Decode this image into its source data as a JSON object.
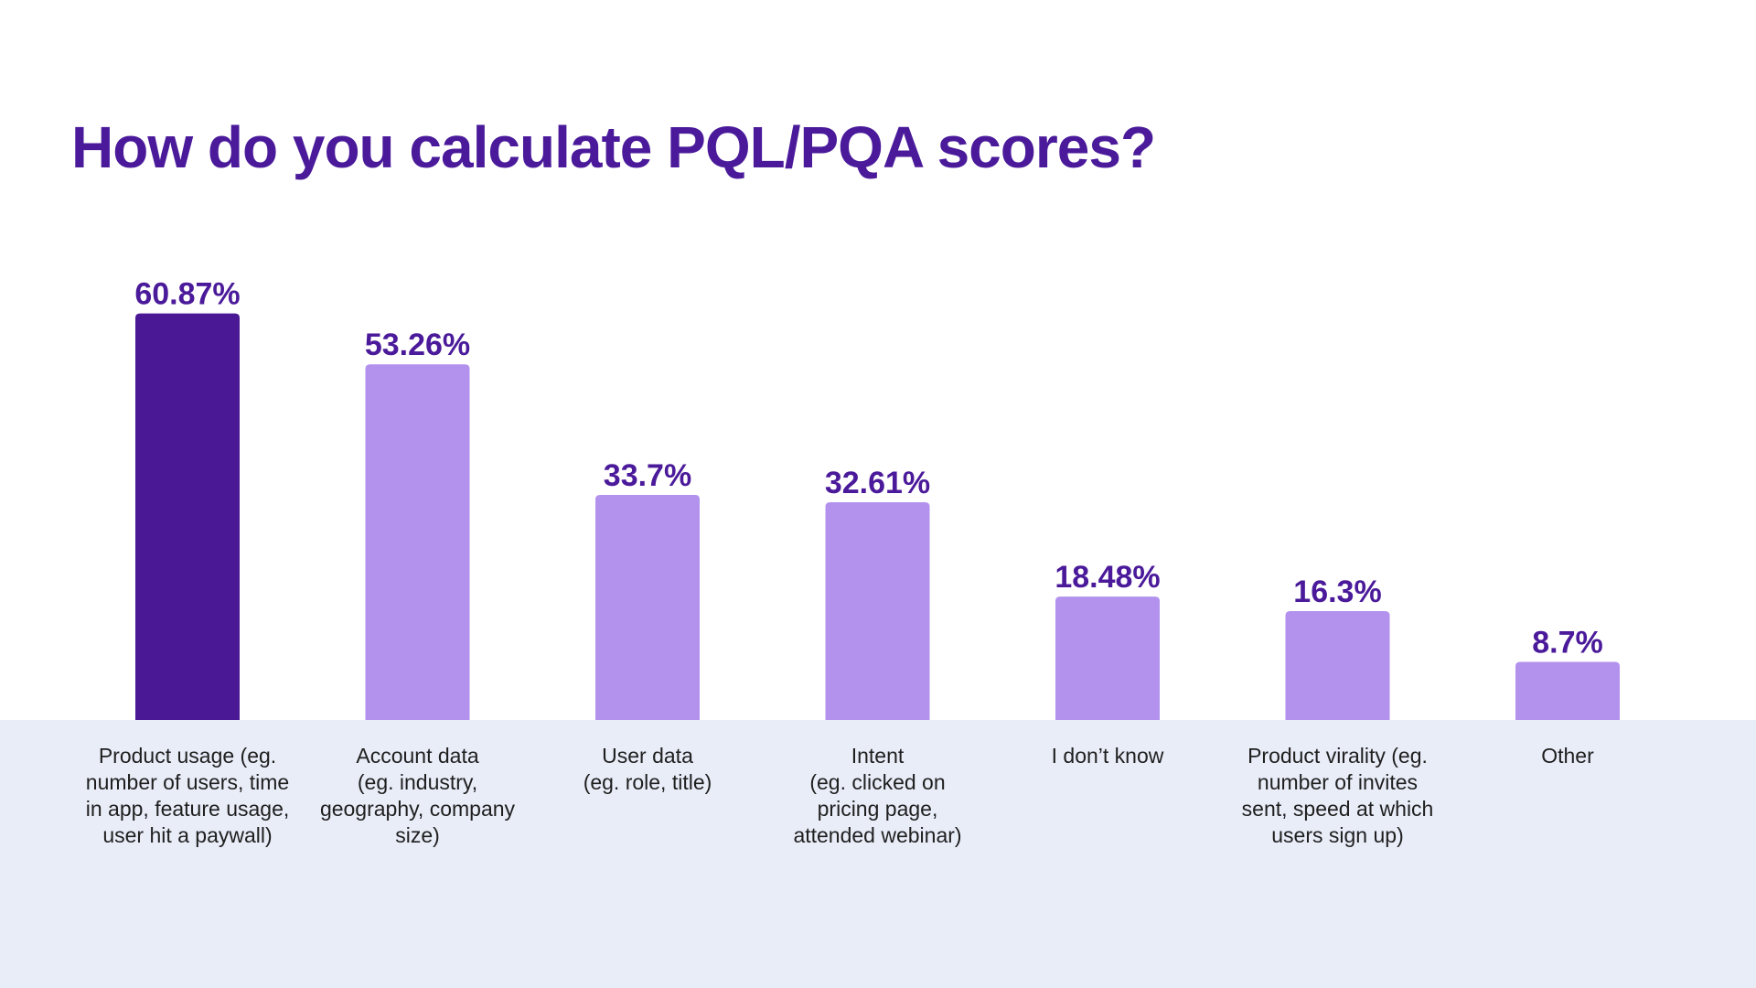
{
  "page": {
    "title": "How do you calculate PQL/PQA scores?"
  },
  "colors": {
    "title": "#4a1a9a",
    "value_label": "#4a1a9a",
    "category_label": "#1f1f1f",
    "highlight_bar": "#4a1795",
    "bar": "#b392ee",
    "bottom_band": "#e9edf8"
  },
  "chart_data": {
    "type": "bar",
    "title": "How do you calculate PQL/PQA scores?",
    "xlabel": "",
    "ylabel": "",
    "ylim": [
      0,
      100
    ],
    "grid": false,
    "legend": "none",
    "highlight_index": 0,
    "categories": [
      "Product usage (eg.\nnumber of users, time\nin app, feature usage,\nuser hit a paywall)",
      "Account data\n(eg. industry,\ngeography, company\nsize)",
      "User data\n(eg. role, title)",
      "Intent\n(eg. clicked on\npricing page,\nattended webinar)",
      "I don’t know",
      "Product virality (eg.\nnumber of invites\nsent, speed at which\nusers sign up)",
      "Other"
    ],
    "values": [
      60.87,
      53.26,
      33.7,
      32.61,
      18.48,
      16.3,
      8.7
    ],
    "value_labels": [
      "60.87%",
      "53.26%",
      "33.7%",
      "32.61%",
      "18.48%",
      "16.3%",
      "8.7%"
    ]
  }
}
